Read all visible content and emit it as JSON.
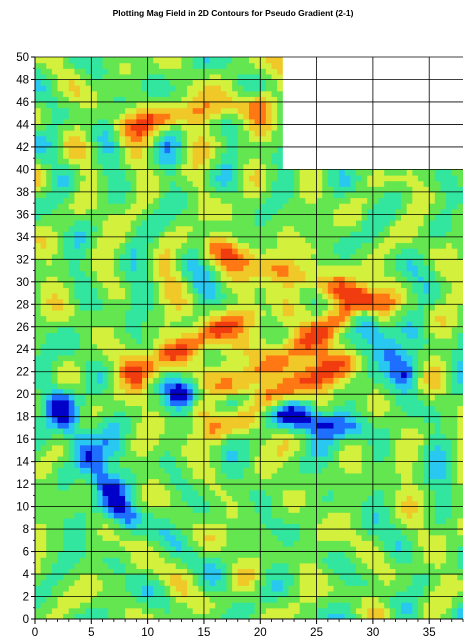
{
  "chart_data": {
    "type": "heatmap",
    "title": "Plotting Mag Field in 2D Contours for Pseudo Gradient (2-1)",
    "xlabel": "",
    "ylabel": "",
    "xlim": [
      0,
      38
    ],
    "ylim": [
      0,
      50
    ],
    "x_ticks": [
      0,
      5,
      10,
      15,
      20,
      25,
      30,
      35
    ],
    "y_ticks": [
      0,
      2,
      4,
      6,
      8,
      10,
      12,
      14,
      16,
      18,
      20,
      22,
      24,
      26,
      28,
      30,
      32,
      34,
      36,
      38,
      40,
      42,
      44,
      46,
      48,
      50
    ],
    "grid": true,
    "survey_extent": {
      "full_width_below_y": 40,
      "upper_block_x_max": 22
    },
    "colormap": [
      "#0000c8",
      "#1e6eff",
      "#28c8f0",
      "#32e6a0",
      "#64e650",
      "#d2f03c",
      "#f0c828",
      "#ff7814",
      "#f03c0f"
    ],
    "value_range": [
      -1,
      1
    ],
    "features": [
      {
        "name": "diagonal band",
        "from": [
          15,
          19
        ],
        "to": [
          29,
          28
        ],
        "value": 0.95
      },
      {
        "name": "NW band",
        "from": [
          9,
          22
        ],
        "to": [
          19,
          27
        ],
        "value": 0.9
      },
      {
        "name": "south band",
        "from": [
          16,
          17
        ],
        "to": [
          28,
          23
        ],
        "value": 0.85
      },
      {
        "name": "NE ridge",
        "from": [
          16,
          33
        ],
        "to": [
          31,
          28
        ],
        "value": 0.7
      },
      {
        "name": "upper anomaly",
        "from": [
          8,
          44
        ],
        "to": [
          20,
          46
        ],
        "value": 0.6
      },
      {
        "name": "low trough",
        "from": [
          13,
          20
        ],
        "to": [
          28,
          17
        ],
        "value": -0.85
      },
      {
        "name": "west low",
        "from": [
          2,
          19
        ],
        "to": [
          8,
          9
        ],
        "value": -0.95
      },
      {
        "name": "east low",
        "from": [
          29,
          27
        ],
        "to": [
          33,
          22
        ],
        "value": -0.9
      }
    ]
  }
}
